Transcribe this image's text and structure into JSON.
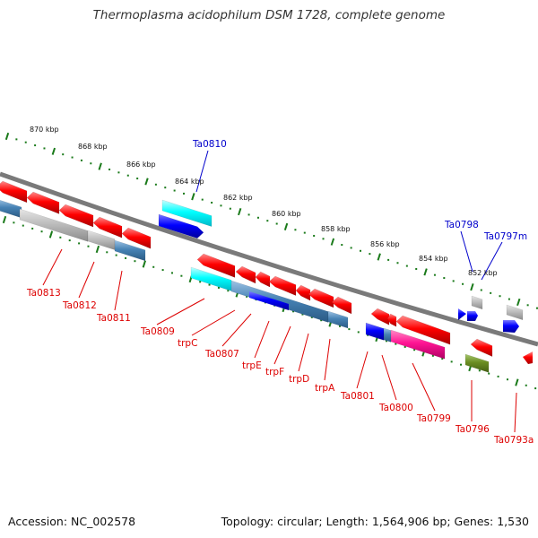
{
  "title": "Thermoplasma acidophilum DSM 1728, complete genome",
  "footer": {
    "accession": "Accession: NC_002578",
    "summary": "Topology: circular; Length: 1,564,906 bp; Genes: 1,530"
  },
  "colors": {
    "backbone": "#808080",
    "scale_ticks": "#1a7a1a",
    "label_minus": "#dd0000",
    "label_plus": "#0000cc",
    "red_gene": "#ff0000",
    "blue_gene": "#0000ff",
    "cyan_gene": "#00ffff",
    "steel_gene": "#4682b4",
    "gray_gene": "#b0b0b0",
    "magenta_gene": "#ff1493",
    "olive_gene": "#6b8e23"
  },
  "scale_labels": [
    {
      "text": "870 kbp"
    },
    {
      "text": "868 kbp"
    },
    {
      "text": "866 kbp"
    },
    {
      "text": "864 kbp"
    },
    {
      "text": "862 kbp"
    },
    {
      "text": "860 kbp"
    },
    {
      "text": "858 kbp"
    },
    {
      "text": "856 kbp"
    },
    {
      "text": "854 kbp"
    },
    {
      "text": "852 kbp"
    }
  ],
  "gene_labels": [
    {
      "text": "Ta0810",
      "strand": "plus"
    },
    {
      "text": "Ta0798",
      "strand": "plus"
    },
    {
      "text": "Ta0797m",
      "strand": "plus"
    },
    {
      "text": "Ta0813",
      "strand": "minus"
    },
    {
      "text": "Ta0812",
      "strand": "minus"
    },
    {
      "text": "Ta0811",
      "strand": "minus"
    },
    {
      "text": "Ta0809",
      "strand": "minus"
    },
    {
      "text": "trpC",
      "strand": "minus"
    },
    {
      "text": "Ta0807",
      "strand": "minus"
    },
    {
      "text": "trpE",
      "strand": "minus"
    },
    {
      "text": "trpF",
      "strand": "minus"
    },
    {
      "text": "trpD",
      "strand": "minus"
    },
    {
      "text": "trpA",
      "strand": "minus"
    },
    {
      "text": "Ta0801",
      "strand": "minus"
    },
    {
      "text": "Ta0800",
      "strand": "minus"
    },
    {
      "text": "Ta0799",
      "strand": "minus"
    },
    {
      "text": "Ta0796",
      "strand": "minus"
    },
    {
      "text": "Ta0793a",
      "strand": "minus"
    }
  ]
}
